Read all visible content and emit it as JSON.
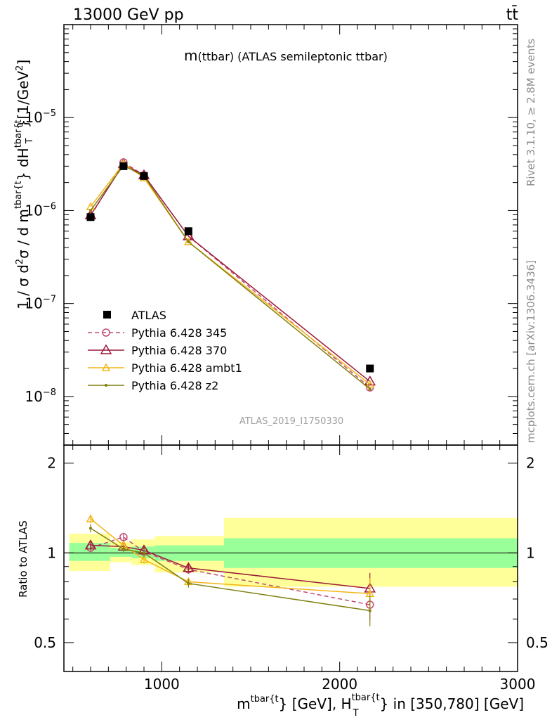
{
  "header": {
    "energy": "13000 GeV pp",
    "process": "tt̄"
  },
  "side_labels": {
    "rivet": "Rivet 3.1.10, ≥ 2.8M events",
    "mcplots": "mcplots.cern.ch [arXiv:1306.3436]"
  },
  "watermark": "ATLAS_2019_I1750330",
  "chart_data": {
    "type": "line",
    "title_main": "m",
    "title_rest": "(ttbar) (ATLAS semileptonic ttbar)",
    "xlabel_tokens": [
      "m",
      "tbar{t",
      "} [GeV], H",
      "tbar{t",
      "T",
      "} in [350,780] [GeV]"
    ],
    "ylabel_tokens": [
      "1 / σ d",
      "2",
      "σ / d m",
      "tbar{t",
      "} dH",
      "tbar{t",
      "T",
      "}[1/GeV",
      "2",
      "]"
    ],
    "ratio_ylabel": "Ratio to ATLAS",
    "xlim": [
      450,
      3000
    ],
    "ylim": [
      3e-09,
      0.0001
    ],
    "ratio_ylim": [
      0.4,
      2.3
    ],
    "x_ticks": [
      1000,
      2000,
      3000
    ],
    "y_ticks": [
      {
        "value": 1e-08,
        "mant": "10",
        "exp": "−8"
      },
      {
        "value": 1e-07,
        "mant": "10",
        "exp": "−7"
      },
      {
        "value": 1e-06,
        "mant": "10",
        "exp": "−6"
      },
      {
        "value": 1e-05,
        "mant": "10",
        "exp": "−5"
      }
    ],
    "ratio_ticks": [
      {
        "value": 0.5,
        "label": "0.5"
      },
      {
        "value": 1,
        "label": "1"
      },
      {
        "value": 2,
        "label": "2"
      }
    ],
    "bin_edges": [
      480,
      710,
      830,
      960,
      1350,
      3000
    ],
    "x_centers": [
      600,
      785,
      900,
      1150,
      2170
    ],
    "data": {
      "name": "ATLAS",
      "values": [
        8.5e-07,
        3e-06,
        2.35e-06,
        6e-07,
        2e-08
      ],
      "band_inner": [
        [
          0.94,
          1.08
        ],
        [
          0.97,
          1.04
        ],
        [
          0.96,
          1.05
        ],
        [
          0.94,
          1.06
        ],
        [
          0.89,
          1.12
        ]
      ],
      "band_outer": [
        [
          0.87,
          1.16
        ],
        [
          0.93,
          1.09
        ],
        [
          0.91,
          1.11
        ],
        [
          0.86,
          1.14
        ],
        [
          0.77,
          1.31
        ]
      ]
    },
    "series": [
      {
        "name": "Pythia 6.428 345",
        "color": "#c24a6e",
        "dash": "6,4",
        "marker": "circle",
        "values": [
          8.7e-07,
          3.3e-06,
          2.4e-06,
          5.3e-07,
          1.25e-08
        ],
        "ratio": [
          1.04,
          1.13,
          1.01,
          0.88,
          0.67
        ]
      },
      {
        "name": "Pythia 6.428 370",
        "color": "#9c1a3a",
        "dash": "",
        "marker": "triangle",
        "values": [
          8.9e-07,
          3.15e-06,
          2.4e-06,
          5.3e-07,
          1.45e-08
        ],
        "ratio": [
          1.06,
          1.05,
          1.02,
          0.89,
          0.76
        ]
      },
      {
        "name": "Pythia 6.428 ambt1",
        "color": "#f2b516",
        "dash": "",
        "marker": "triangle-small",
        "values": [
          1.1e-06,
          3.2e-06,
          2.25e-06,
          4.6e-07,
          1.35e-08
        ],
        "ratio": [
          1.3,
          1.06,
          0.95,
          0.8,
          0.73
        ]
      },
      {
        "name": "Pythia 6.428 z2",
        "color": "#808010",
        "dash": "",
        "marker": "dot",
        "values": [
          1e-06,
          3.05e-06,
          2.35e-06,
          4.6e-07,
          1.2e-08
        ],
        "ratio": [
          1.21,
          1.03,
          1.0,
          0.79,
          0.64
        ]
      }
    ],
    "legend_position": "middle-left",
    "grid": false
  }
}
